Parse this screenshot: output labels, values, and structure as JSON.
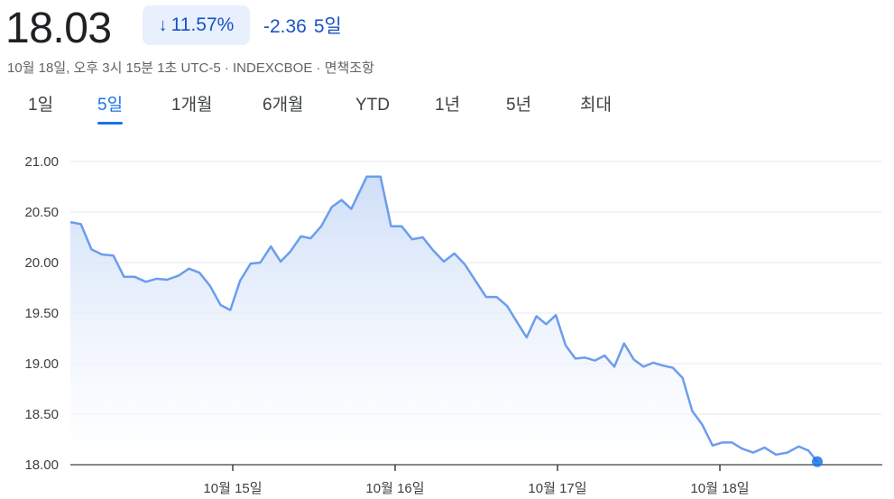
{
  "header": {
    "price": "18.03",
    "percent_change": "11.57%",
    "arrow_icon": "arrow-down-icon",
    "abs_change": "-2.36",
    "period": "5일",
    "meta": "10월 18일, 오후 3시 15분 1초 UTC-5 · INDEXCBOE · 면책조항"
  },
  "tabs": [
    {
      "label": "1일",
      "active": false
    },
    {
      "label": "5일",
      "active": true
    },
    {
      "label": "1개월",
      "active": false
    },
    {
      "label": "6개월",
      "active": false
    },
    {
      "label": "YTD",
      "active": false
    },
    {
      "label": "1년",
      "active": false
    },
    {
      "label": "5년",
      "active": false
    },
    {
      "label": "최대",
      "active": false
    }
  ],
  "colors": {
    "line": "#6b9ded",
    "fill_top": "#c9dbf7",
    "accent": "#1a73e8",
    "grid": "#e8eaed"
  },
  "chart_data": {
    "type": "area",
    "ylim": [
      18.0,
      21.0
    ],
    "y_ticks": [
      "21.00",
      "20.50",
      "20.00",
      "19.50",
      "19.00",
      "18.50",
      "18.00"
    ],
    "x_ticks": [
      {
        "label": "10월 15일",
        "at": 0.2
      },
      {
        "label": "10월 16일",
        "at": 0.4
      },
      {
        "label": "10월 17일",
        "at": 0.6
      },
      {
        "label": "10월 18일",
        "at": 0.8
      }
    ],
    "x_range": [
      0,
      1
    ],
    "values": [
      [
        0.0,
        20.4
      ],
      [
        0.013,
        20.38
      ],
      [
        0.026,
        20.13
      ],
      [
        0.039,
        20.08
      ],
      [
        0.053,
        20.07
      ],
      [
        0.066,
        19.86
      ],
      [
        0.079,
        19.86
      ],
      [
        0.093,
        19.81
      ],
      [
        0.106,
        19.84
      ],
      [
        0.119,
        19.83
      ],
      [
        0.133,
        19.87
      ],
      [
        0.146,
        19.94
      ],
      [
        0.159,
        19.9
      ],
      [
        0.172,
        19.77
      ],
      [
        0.185,
        19.58
      ],
      [
        0.197,
        19.53
      ],
      [
        0.209,
        19.82
      ],
      [
        0.222,
        19.99
      ],
      [
        0.234,
        20.0
      ],
      [
        0.247,
        20.16
      ],
      [
        0.259,
        20.01
      ],
      [
        0.271,
        20.11
      ],
      [
        0.284,
        20.26
      ],
      [
        0.296,
        20.24
      ],
      [
        0.309,
        20.36
      ],
      [
        0.322,
        20.55
      ],
      [
        0.334,
        20.62
      ],
      [
        0.346,
        20.53
      ],
      [
        0.365,
        20.85
      ],
      [
        0.382,
        20.85
      ],
      [
        0.395,
        20.36
      ],
      [
        0.408,
        20.36
      ],
      [
        0.421,
        20.23
      ],
      [
        0.434,
        20.25
      ],
      [
        0.447,
        20.12
      ],
      [
        0.46,
        20.01
      ],
      [
        0.473,
        20.09
      ],
      [
        0.486,
        19.98
      ],
      [
        0.499,
        19.82
      ],
      [
        0.512,
        19.66
      ],
      [
        0.525,
        19.66
      ],
      [
        0.538,
        19.57
      ],
      [
        0.551,
        19.4
      ],
      [
        0.562,
        19.26
      ],
      [
        0.574,
        19.47
      ],
      [
        0.586,
        19.39
      ],
      [
        0.598,
        19.48
      ],
      [
        0.61,
        19.18
      ],
      [
        0.622,
        19.05
      ],
      [
        0.634,
        19.06
      ],
      [
        0.646,
        19.03
      ],
      [
        0.658,
        19.08
      ],
      [
        0.67,
        18.97
      ],
      [
        0.682,
        19.2
      ],
      [
        0.694,
        19.04
      ],
      [
        0.706,
        18.97
      ],
      [
        0.718,
        19.01
      ],
      [
        0.73,
        18.98
      ],
      [
        0.742,
        18.96
      ],
      [
        0.754,
        18.86
      ],
      [
        0.766,
        18.53
      ],
      [
        0.778,
        18.4
      ],
      [
        0.791,
        18.19
      ],
      [
        0.803,
        18.22
      ],
      [
        0.815,
        18.22
      ],
      [
        0.827,
        18.16
      ],
      [
        0.841,
        18.12
      ],
      [
        0.855,
        18.17
      ],
      [
        0.869,
        18.1
      ],
      [
        0.883,
        18.12
      ],
      [
        0.897,
        18.18
      ],
      [
        0.909,
        18.14
      ],
      [
        0.92,
        18.03
      ]
    ]
  }
}
